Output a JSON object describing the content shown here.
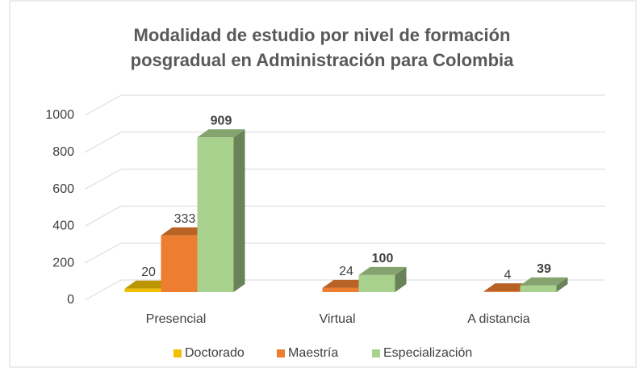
{
  "chart_data": {
    "type": "bar3d",
    "title": "Modalidad de estudio por nivel de formación posgradual en Administración para Colombia",
    "categories": [
      "Presencial",
      "Virtual",
      "A distancia"
    ],
    "series": [
      {
        "name": "Doctorado",
        "color": "#f0c000",
        "values": [
          20,
          null,
          null
        ]
      },
      {
        "name": "Maestría",
        "color": "#ed7d31",
        "values": [
          333,
          24,
          4
        ]
      },
      {
        "name": "Especialización",
        "color": "#a9d18e",
        "values": [
          909,
          100,
          39
        ]
      }
    ],
    "ylim": [
      0,
      1000
    ],
    "yticks": [
      0,
      200,
      400,
      600,
      800,
      1000
    ],
    "grid": true,
    "legend": "bottom"
  }
}
